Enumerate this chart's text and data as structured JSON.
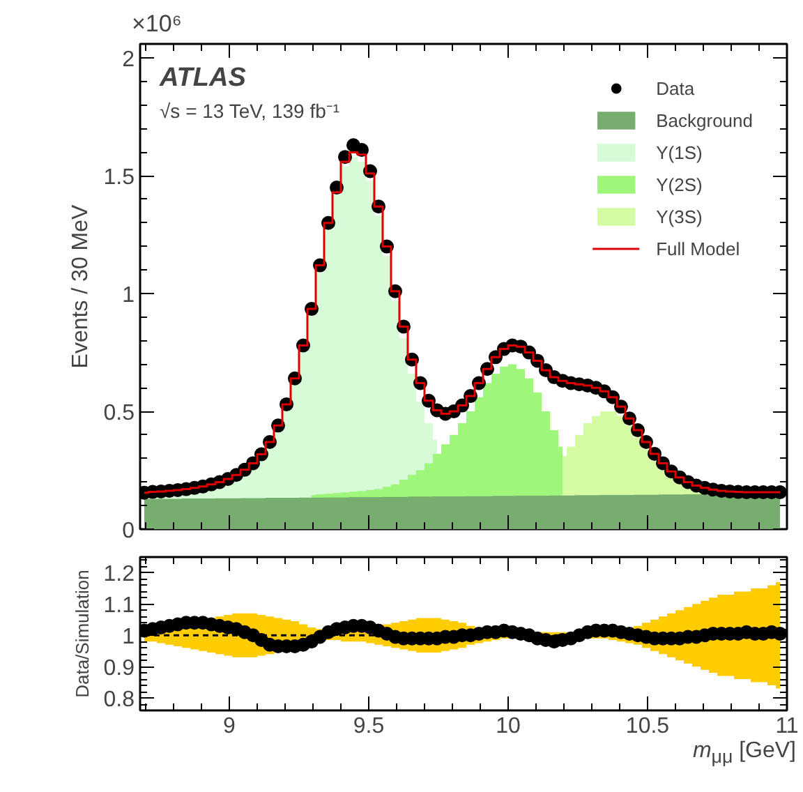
{
  "chart_data": [
    {
      "type": "area",
      "ylabel": "Events / 30 MeV",
      "annotations": [
        "×10⁶",
        "ATLAS",
        "√s = 13 TeV, 139 fb⁻¹"
      ],
      "x": [
        8.695,
        8.725,
        8.755,
        8.785,
        8.815,
        8.845,
        8.875,
        8.905,
        8.935,
        8.965,
        8.995,
        9.025,
        9.055,
        9.085,
        9.115,
        9.145,
        9.175,
        9.205,
        9.235,
        9.265,
        9.295,
        9.325,
        9.355,
        9.385,
        9.415,
        9.445,
        9.475,
        9.505,
        9.535,
        9.565,
        9.595,
        9.625,
        9.655,
        9.685,
        9.715,
        9.745,
        9.775,
        9.805,
        9.835,
        9.865,
        9.895,
        9.925,
        9.955,
        9.985,
        10.015,
        10.045,
        10.075,
        10.105,
        10.135,
        10.165,
        10.195,
        10.225,
        10.255,
        10.285,
        10.315,
        10.345,
        10.375,
        10.405,
        10.435,
        10.465,
        10.495,
        10.525,
        10.555,
        10.585,
        10.615,
        10.645,
        10.675,
        10.705,
        10.735,
        10.765,
        10.795,
        10.825,
        10.855,
        10.885,
        10.915,
        10.945,
        10.975
      ],
      "xlim": [
        8.68,
        11.0
      ],
      "xticks": [
        9,
        9.5,
        10,
        10.5,
        11
      ],
      "ylim": [
        0,
        2.06
      ],
      "yticks": [
        0,
        0.5,
        1,
        1.5,
        2
      ],
      "tick_labels": "y",
      "legend": "top right",
      "series": [
        {
          "name": "Data",
          "type": "scatter",
          "marker": "circle",
          "color": "#000000",
          "values": [
            0.155,
            0.158,
            0.16,
            0.163,
            0.166,
            0.17,
            0.175,
            0.181,
            0.19,
            0.2,
            0.213,
            0.23,
            0.252,
            0.28,
            0.318,
            0.37,
            0.44,
            0.53,
            0.64,
            0.78,
            0.935,
            1.12,
            1.3,
            1.45,
            1.58,
            1.63,
            1.61,
            1.52,
            1.37,
            1.2,
            1.01,
            0.86,
            0.72,
            0.62,
            0.545,
            0.505,
            0.49,
            0.5,
            0.525,
            0.565,
            0.62,
            0.68,
            0.73,
            0.765,
            0.78,
            0.775,
            0.75,
            0.715,
            0.675,
            0.645,
            0.63,
            0.62,
            0.615,
            0.61,
            0.6,
            0.585,
            0.56,
            0.52,
            0.47,
            0.42,
            0.37,
            0.32,
            0.28,
            0.245,
            0.22,
            0.2,
            0.185,
            0.175,
            0.168,
            0.163,
            0.16,
            0.158,
            0.157,
            0.157,
            0.157,
            0.157,
            0.157
          ]
        },
        {
          "name": "Background",
          "color": "#78ad70",
          "values": [
            0.128,
            0.128,
            0.129,
            0.129,
            0.129,
            0.13,
            0.13,
            0.13,
            0.13,
            0.131,
            0.131,
            0.131,
            0.132,
            0.132,
            0.132,
            0.133,
            0.133,
            0.133,
            0.133,
            0.134,
            0.134,
            0.134,
            0.135,
            0.135,
            0.135,
            0.136,
            0.136,
            0.136,
            0.136,
            0.137,
            0.137,
            0.137,
            0.138,
            0.138,
            0.138,
            0.139,
            0.139,
            0.139,
            0.139,
            0.14,
            0.14,
            0.14,
            0.141,
            0.141,
            0.141,
            0.142,
            0.142,
            0.142,
            0.142,
            0.143,
            0.143,
            0.143,
            0.144,
            0.144,
            0.144,
            0.145,
            0.145,
            0.145,
            0.145,
            0.146,
            0.146,
            0.146,
            0.147,
            0.147,
            0.147,
            0.148,
            0.148,
            0.148,
            0.148,
            0.149,
            0.149,
            0.149,
            0.15,
            0.15,
            0.15,
            0.151,
            0.151
          ]
        },
        {
          "name": "Υ(1S)",
          "color": "#d6fbd6",
          "values": [
            0.15,
            0.153,
            0.155,
            0.158,
            0.161,
            0.165,
            0.17,
            0.176,
            0.184,
            0.194,
            0.206,
            0.222,
            0.243,
            0.27,
            0.306,
            0.356,
            0.424,
            0.512,
            0.62,
            0.757,
            0.91,
            1.09,
            1.27,
            1.42,
            1.54,
            1.58,
            1.56,
            1.48,
            1.33,
            1.16,
            0.97,
            0.81,
            0.66,
            0.54,
            0.45,
            0.38,
            null,
            null,
            null,
            null,
            null,
            null,
            null,
            null,
            null,
            null,
            null,
            null,
            null,
            null,
            null,
            null,
            null,
            null,
            null,
            null,
            null,
            null,
            null,
            null,
            null,
            null,
            null,
            null,
            null,
            null,
            null,
            null,
            null,
            null,
            null,
            null,
            null,
            null,
            null,
            null,
            null
          ]
        },
        {
          "name": "Υ(2S)",
          "color": "#9ef77a",
          "values": [
            null,
            null,
            null,
            null,
            null,
            null,
            null,
            null,
            null,
            null,
            null,
            null,
            null,
            null,
            null,
            null,
            null,
            null,
            null,
            null,
            0.145,
            0.148,
            0.15,
            0.153,
            0.156,
            0.159,
            0.162,
            0.166,
            0.17,
            0.18,
            0.19,
            0.21,
            0.23,
            0.25,
            0.28,
            0.32,
            0.36,
            0.4,
            0.45,
            0.5,
            0.56,
            0.62,
            0.66,
            0.69,
            0.7,
            0.68,
            0.64,
            0.58,
            0.5,
            0.42,
            0.35,
            null,
            null,
            null,
            null,
            null,
            null,
            null,
            null,
            null,
            null,
            null,
            null,
            null,
            null,
            null,
            null,
            null,
            null,
            null,
            null,
            null,
            null,
            null,
            null,
            null,
            null
          ]
        },
        {
          "name": "Υ(3S)",
          "color": "#d5fba3",
          "values": [
            null,
            null,
            null,
            null,
            null,
            null,
            null,
            null,
            null,
            null,
            null,
            null,
            null,
            null,
            null,
            null,
            null,
            null,
            null,
            null,
            null,
            null,
            null,
            null,
            null,
            null,
            null,
            null,
            null,
            null,
            null,
            null,
            null,
            null,
            null,
            null,
            null,
            null,
            null,
            null,
            null,
            null,
            null,
            null,
            null,
            null,
            null,
            null,
            null,
            null,
            0.31,
            0.35,
            0.4,
            0.45,
            0.48,
            0.5,
            0.5,
            0.48,
            0.44,
            0.39,
            0.34,
            0.29,
            0.25,
            0.22,
            0.2,
            0.185,
            0.175,
            0.168,
            0.163,
            0.16,
            null,
            null,
            null,
            null,
            null,
            null,
            null
          ]
        },
        {
          "name": "Full Model",
          "type": "step",
          "color": "#dd0000",
          "values": [
            0.155,
            0.158,
            0.16,
            0.163,
            0.166,
            0.17,
            0.175,
            0.181,
            0.19,
            0.2,
            0.213,
            0.23,
            0.252,
            0.28,
            0.318,
            0.37,
            0.44,
            0.53,
            0.64,
            0.78,
            0.935,
            1.12,
            1.3,
            1.43,
            1.56,
            1.6,
            1.59,
            1.51,
            1.37,
            1.2,
            1.01,
            0.86,
            0.72,
            0.62,
            0.545,
            0.505,
            0.49,
            0.5,
            0.525,
            0.565,
            0.62,
            0.68,
            0.73,
            0.765,
            0.78,
            0.775,
            0.75,
            0.715,
            0.675,
            0.645,
            0.63,
            0.62,
            0.615,
            0.61,
            0.6,
            0.585,
            0.56,
            0.52,
            0.47,
            0.42,
            0.37,
            0.32,
            0.28,
            0.245,
            0.22,
            0.2,
            0.185,
            0.175,
            0.168,
            0.163,
            0.16,
            0.158,
            0.157,
            0.157,
            0.157,
            0.157,
            0.157
          ]
        }
      ]
    },
    {
      "type": "scatter",
      "xlabel": "m$_{μμ}$ [GeV]",
      "ylabel": "Data/Simulation",
      "x": [
        8.695,
        8.725,
        8.755,
        8.785,
        8.815,
        8.845,
        8.875,
        8.905,
        8.935,
        8.965,
        8.995,
        9.025,
        9.055,
        9.085,
        9.115,
        9.145,
        9.175,
        9.205,
        9.235,
        9.265,
        9.295,
        9.325,
        9.355,
        9.385,
        9.415,
        9.445,
        9.475,
        9.505,
        9.535,
        9.565,
        9.595,
        9.625,
        9.655,
        9.685,
        9.715,
        9.745,
        9.775,
        9.805,
        9.835,
        9.865,
        9.895,
        9.925,
        9.955,
        9.985,
        10.015,
        10.045,
        10.075,
        10.105,
        10.135,
        10.165,
        10.195,
        10.225,
        10.255,
        10.285,
        10.315,
        10.345,
        10.375,
        10.405,
        10.435,
        10.465,
        10.495,
        10.525,
        10.555,
        10.585,
        10.615,
        10.645,
        10.675,
        10.705,
        10.735,
        10.765,
        10.795,
        10.825,
        10.855,
        10.885,
        10.915,
        10.945,
        10.975
      ],
      "xlim": [
        8.68,
        11.0
      ],
      "xticks": [
        9,
        9.5,
        10,
        10.5,
        11
      ],
      "ylim": [
        0.76,
        1.25
      ],
      "yticks": [
        0.8,
        0.9,
        1,
        1.1,
        1.2
      ],
      "series": [
        {
          "type": "line",
          "color": "#000000",
          "line_style": "dashed",
          "values": [
            1,
            1,
            1,
            1,
            1,
            1,
            1,
            1,
            1,
            1,
            1,
            1,
            1,
            1,
            1,
            1,
            1,
            1,
            1,
            1,
            1,
            1,
            1,
            1,
            1,
            1,
            1,
            1,
            1,
            1,
            1,
            1,
            1,
            1,
            1,
            1,
            1,
            1,
            1,
            1,
            1,
            1,
            1,
            1,
            1,
            1,
            1,
            1,
            1,
            1,
            1,
            1,
            1,
            1,
            1,
            1,
            1,
            1,
            1,
            1,
            1,
            1,
            1,
            1,
            1,
            1,
            1,
            1,
            1,
            1,
            1,
            1,
            1,
            1,
            1,
            1,
            1
          ],
          "lower": [
            0.98,
            0.98,
            0.975,
            0.97,
            0.965,
            0.96,
            0.955,
            0.95,
            0.945,
            0.94,
            0.935,
            0.93,
            0.93,
            0.93,
            0.935,
            0.94,
            0.945,
            0.95,
            0.955,
            0.965,
            0.975,
            0.98,
            0.985,
            0.985,
            0.98,
            0.98,
            0.98,
            0.975,
            0.97,
            0.965,
            0.96,
            0.955,
            0.95,
            0.945,
            0.945,
            0.945,
            0.95,
            0.955,
            0.96,
            0.97,
            0.975,
            0.98,
            0.985,
            0.99,
            0.99,
            0.99,
            0.99,
            0.99,
            0.99,
            0.99,
            0.99,
            0.99,
            0.99,
            0.99,
            0.99,
            0.99,
            0.985,
            0.98,
            0.975,
            0.97,
            0.96,
            0.95,
            0.94,
            0.93,
            0.92,
            0.91,
            0.9,
            0.89,
            0.88,
            0.87,
            0.87,
            0.86,
            0.86,
            0.85,
            0.85,
            0.84,
            0.83
          ],
          "upper": [
            1.02,
            1.02,
            1.025,
            1.03,
            1.035,
            1.04,
            1.045,
            1.05,
            1.055,
            1.06,
            1.065,
            1.07,
            1.07,
            1.07,
            1.065,
            1.06,
            1.055,
            1.05,
            1.045,
            1.035,
            1.025,
            1.02,
            1.015,
            1.015,
            1.02,
            1.02,
            1.02,
            1.025,
            1.03,
            1.035,
            1.04,
            1.045,
            1.05,
            1.055,
            1.055,
            1.055,
            1.05,
            1.045,
            1.04,
            1.03,
            1.025,
            1.02,
            1.015,
            1.01,
            1.01,
            1.01,
            1.01,
            1.01,
            1.01,
            1.01,
            1.01,
            1.01,
            1.01,
            1.01,
            1.01,
            1.01,
            1.015,
            1.02,
            1.025,
            1.03,
            1.04,
            1.05,
            1.06,
            1.07,
            1.08,
            1.09,
            1.1,
            1.11,
            1.12,
            1.13,
            1.13,
            1.14,
            1.14,
            1.15,
            1.15,
            1.16,
            1.17
          ]
        },
        {
          "color": "#000000",
          "marker": "circle",
          "values": [
            1.015,
            1.02,
            1.025,
            1.03,
            1.035,
            1.04,
            1.04,
            1.04,
            1.035,
            1.03,
            1.025,
            1.02,
            1.01,
            1.0,
            0.985,
            0.97,
            0.965,
            0.965,
            0.965,
            0.97,
            0.98,
            0.995,
            1.01,
            1.02,
            1.025,
            1.03,
            1.03,
            1.025,
            1.015,
            1.005,
            0.995,
            0.99,
            0.99,
            0.99,
            0.99,
            0.99,
            0.995,
            0.995,
            1.0,
            1.0,
            1.005,
            1.01,
            1.01,
            1.015,
            1.01,
            1.005,
            1.0,
            0.99,
            0.985,
            0.98,
            0.985,
            0.99,
            1.0,
            1.01,
            1.015,
            1.015,
            1.015,
            1.01,
            1.005,
            1.0,
            0.995,
            0.99,
            0.99,
            0.99,
            0.99,
            0.995,
            0.995,
            1.0,
            1.005,
            1.005,
            1.005,
            1.005,
            1.01,
            1.005,
            1.005,
            1.01,
            1.005
          ]
        }
      ]
    }
  ]
}
